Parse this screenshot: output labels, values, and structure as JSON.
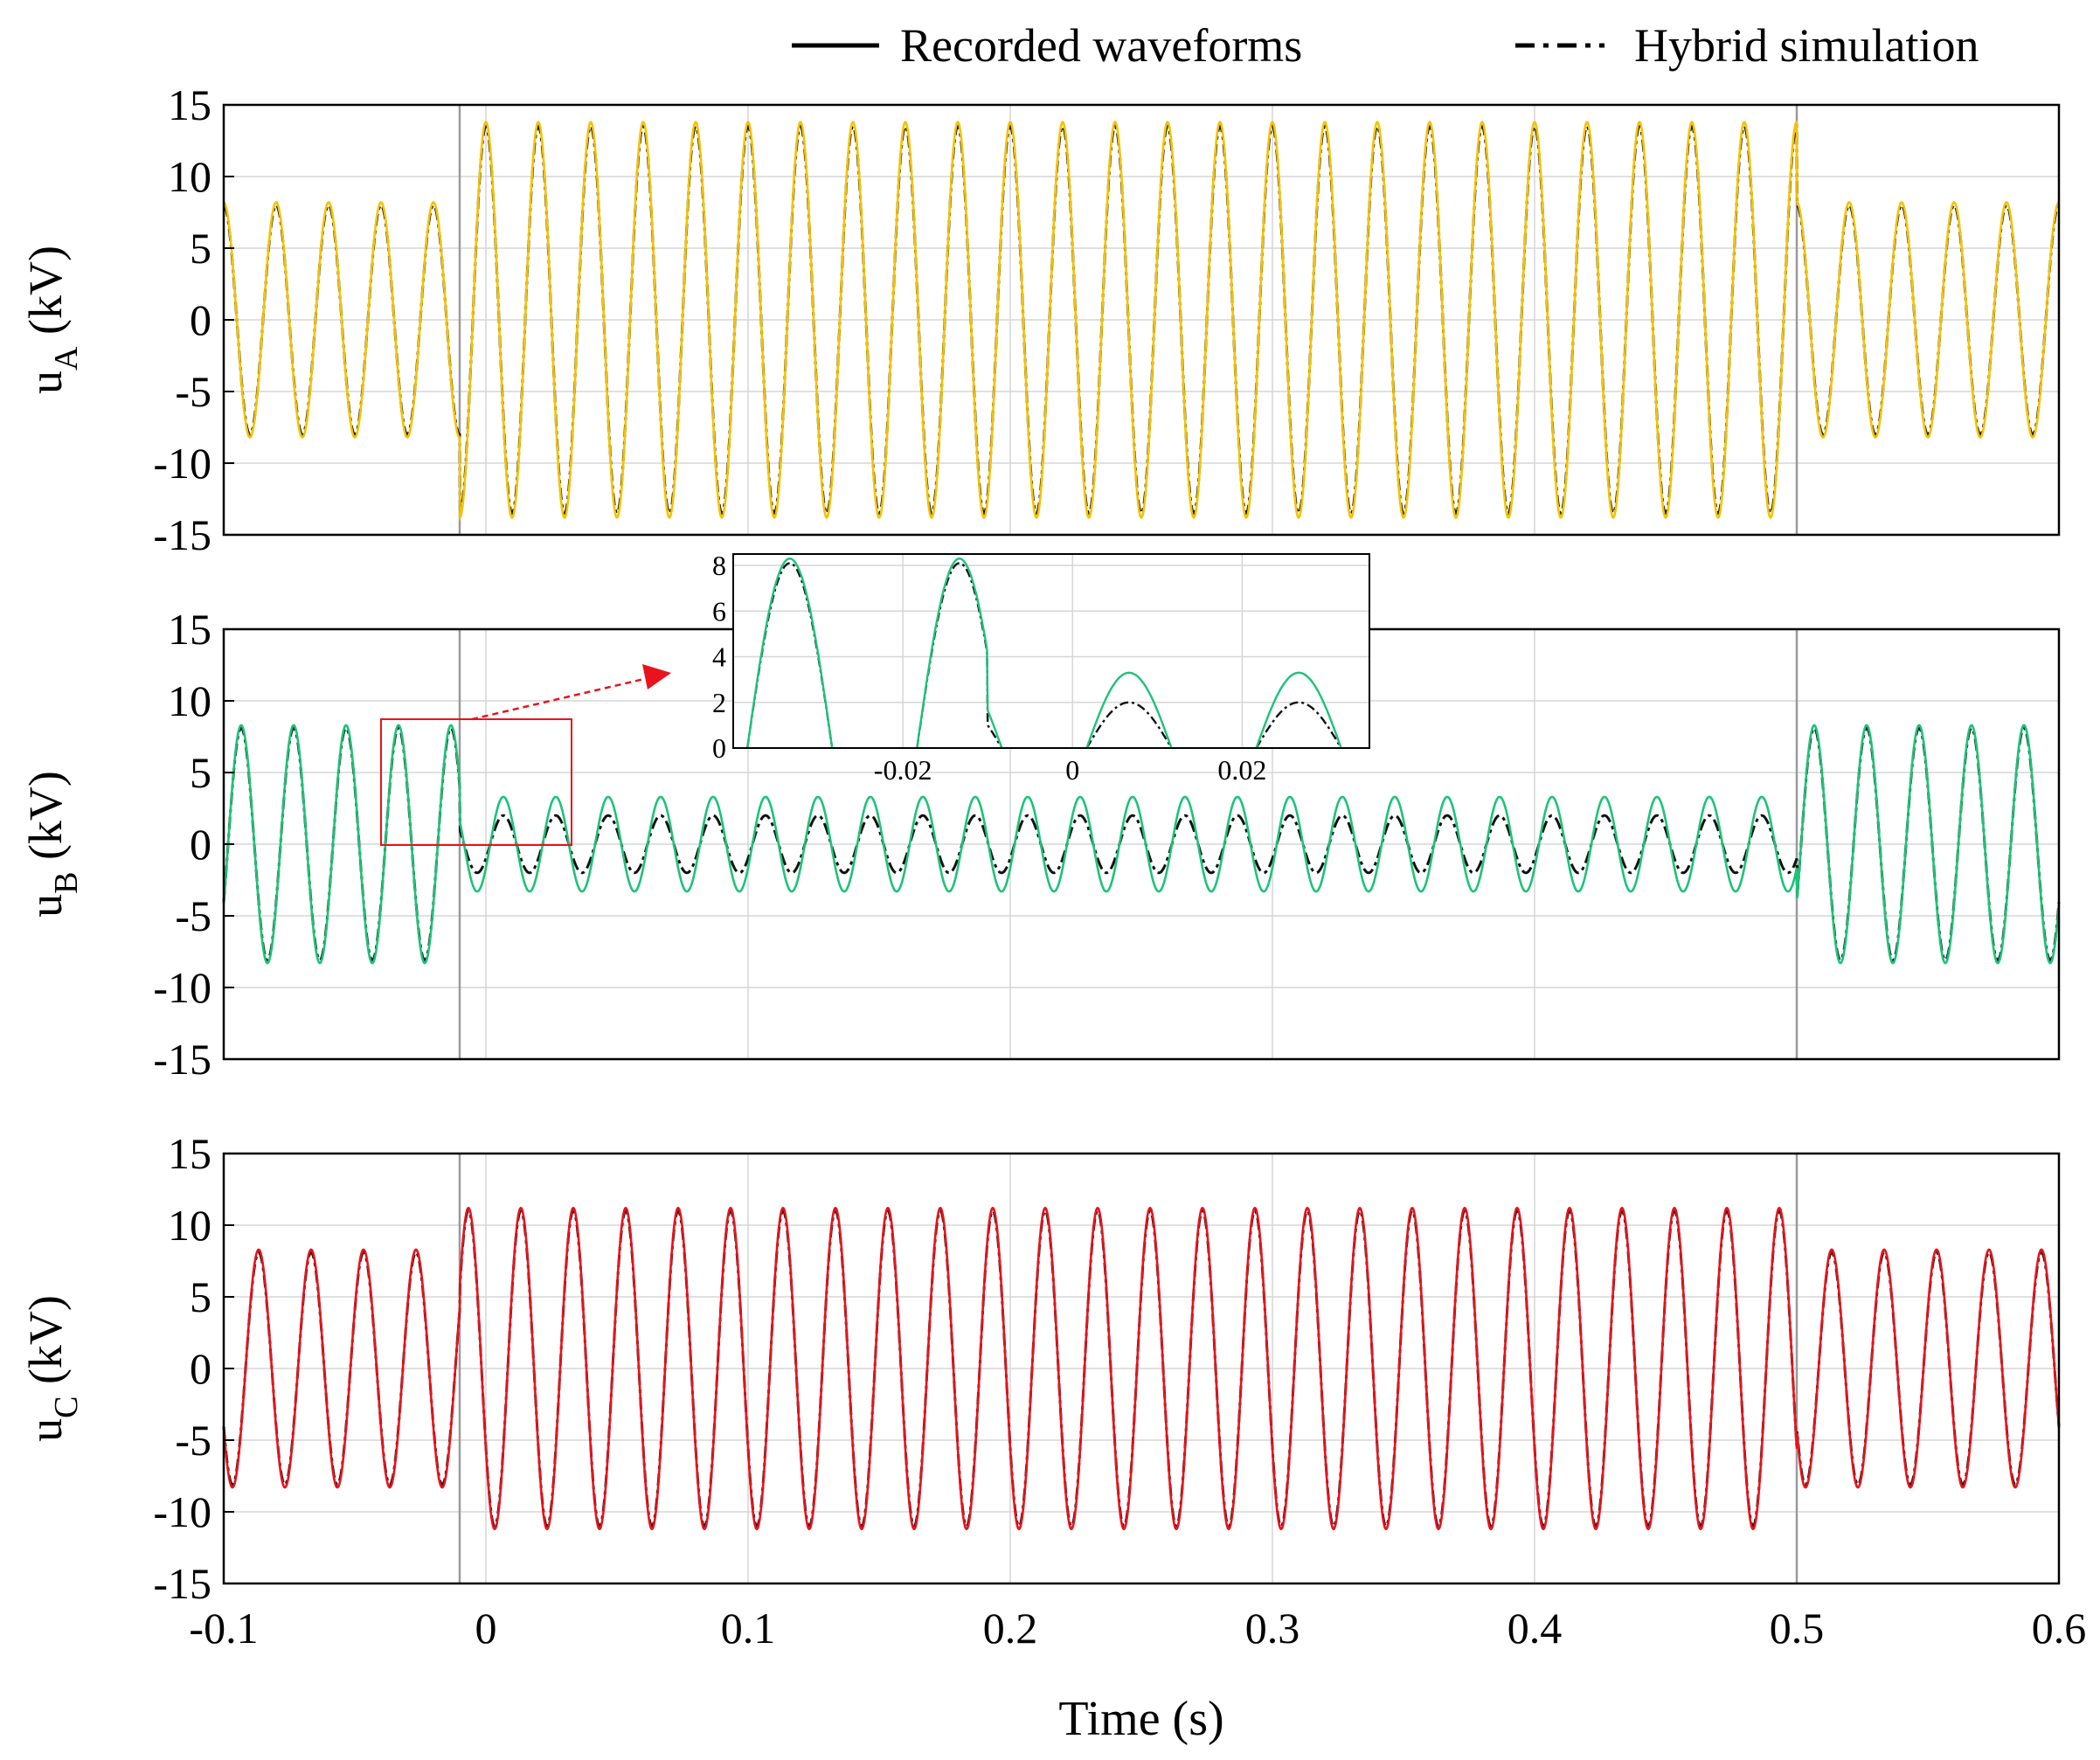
{
  "chart_data": {
    "type": "line",
    "legend": {
      "position": "top-right",
      "items": [
        {
          "label": "Recorded waveforms",
          "style": "solid",
          "color": "#000000"
        },
        {
          "label": "Hybrid simulation",
          "style": "dash-dot",
          "color": "#000000"
        }
      ]
    },
    "xlabel": "Time (s)",
    "xlim": [
      -0.1,
      0.6
    ],
    "xticks": [
      -0.1,
      0,
      0.1,
      0.2,
      0.3,
      0.4,
      0.5,
      0.6
    ],
    "xtick_labels": [
      "-0.1",
      "0",
      "0.1",
      "0.2",
      "0.3",
      "0.4",
      "0.5",
      "0.6"
    ],
    "ylim": [
      -15,
      15
    ],
    "yticks": [
      15,
      10,
      5,
      0,
      -5,
      -10,
      -15
    ],
    "ytick_labels": [
      "15",
      "10",
      "5",
      "0",
      "-5",
      "-10",
      "-15"
    ],
    "frequency_hz": 50,
    "fault_interval_s": [
      -0.01,
      0.5
    ],
    "panels": [
      {
        "name": "uA",
        "ylabel_main": "u",
        "ylabel_sub": "A",
        "ylabel_unit": " (kV)",
        "color": "#f5c200",
        "series": [
          {
            "name": "Recorded waveforms",
            "phase_deg": 90,
            "segments": [
              {
                "t": [
                  -0.1,
                  -0.01
                ],
                "amplitude_kv": 8.2
              },
              {
                "t": [
                  -0.01,
                  0.5
                ],
                "amplitude_kv": 13.8
              },
              {
                "t": [
                  0.5,
                  0.6
                ],
                "amplitude_kv": 8.2
              }
            ]
          },
          {
            "name": "Hybrid simulation",
            "phase_deg": 90,
            "segments": [
              {
                "t": [
                  -0.1,
                  -0.01
                ],
                "amplitude_kv": 8.0
              },
              {
                "t": [
                  -0.01,
                  0.5
                ],
                "amplitude_kv": 13.5
              },
              {
                "t": [
                  0.5,
                  0.6
                ],
                "amplitude_kv": 8.0
              }
            ]
          }
        ]
      },
      {
        "name": "uB",
        "ylabel_main": "u",
        "ylabel_sub": "B",
        "ylabel_unit": " (kV)",
        "color": "#1dc27a",
        "series": [
          {
            "name": "Recorded waveforms",
            "phase_deg": -30,
            "segments": [
              {
                "t": [
                  -0.1,
                  -0.01
                ],
                "amplitude_kv": 8.3
              },
              {
                "t": [
                  -0.01,
                  0.5
                ],
                "amplitude_kv": 3.3
              },
              {
                "t": [
                  0.5,
                  0.6
                ],
                "amplitude_kv": 8.3
              }
            ]
          },
          {
            "name": "Hybrid simulation",
            "phase_deg": -30,
            "segments": [
              {
                "t": [
                  -0.1,
                  -0.01
                ],
                "amplitude_kv": 8.1
              },
              {
                "t": [
                  -0.01,
                  0.5
                ],
                "amplitude_kv": 2.0
              },
              {
                "t": [
                  0.5,
                  0.6
                ],
                "amplitude_kv": 8.1
              }
            ]
          }
        ],
        "inset": {
          "xlim": [
            -0.04,
            0.035
          ],
          "ylim": [
            0,
            8.5
          ],
          "xticks": [
            -0.02,
            0,
            0.02
          ],
          "xtick_labels": [
            "-0.02",
            "0",
            "0.02"
          ],
          "yticks": [
            8,
            6,
            4,
            2,
            0
          ],
          "ytick_labels": [
            "8",
            "6",
            "4",
            "2",
            "0"
          ],
          "zoom_window": {
            "x": [
              -0.04,
              0.034
            ],
            "y": [
              0,
              8.8
            ]
          }
        }
      },
      {
        "name": "uC",
        "ylabel_main": "u",
        "ylabel_sub": "C",
        "ylabel_unit": " (kV)",
        "color": "#e8131c",
        "series": [
          {
            "name": "Recorded waveforms",
            "phase_deg": 210,
            "segments": [
              {
                "t": [
                  -0.1,
                  -0.01
                ],
                "amplitude_kv": 8.3
              },
              {
                "t": [
                  -0.01,
                  0.5
                ],
                "amplitude_kv": 11.2
              },
              {
                "t": [
                  0.5,
                  0.6
                ],
                "amplitude_kv": 8.3
              }
            ]
          },
          {
            "name": "Hybrid simulation",
            "phase_deg": 210,
            "segments": [
              {
                "t": [
                  -0.1,
                  -0.01
                ],
                "amplitude_kv": 8.1
              },
              {
                "t": [
                  -0.01,
                  0.5
                ],
                "amplitude_kv": 11.0
              },
              {
                "t": [
                  0.5,
                  0.6
                ],
                "amplitude_kv": 8.1
              }
            ]
          }
        ]
      }
    ]
  }
}
